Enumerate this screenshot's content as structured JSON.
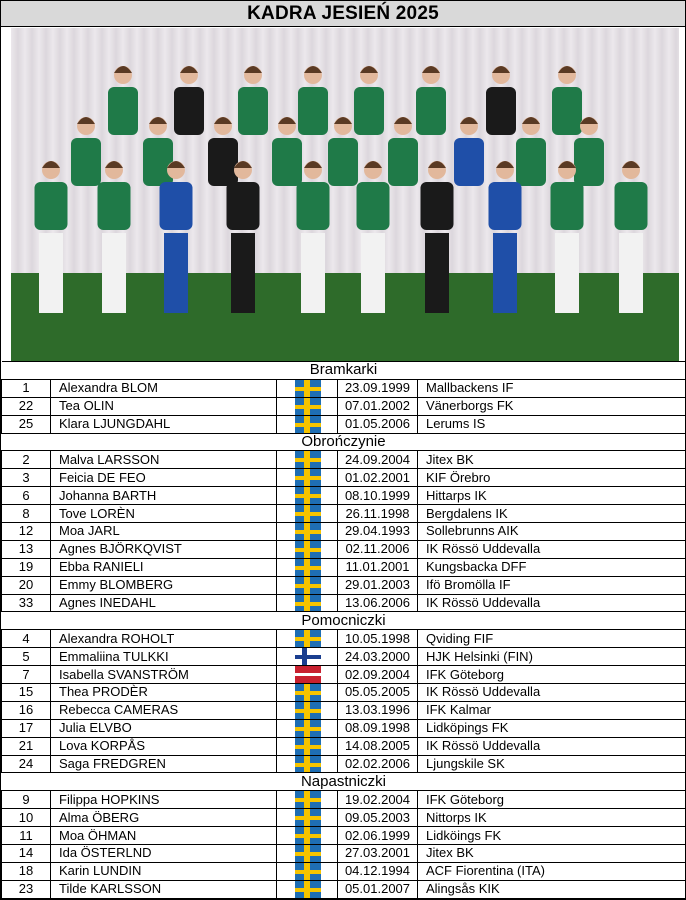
{
  "title": "KADRA JESIEŃ 2025",
  "colors": {
    "sweden": "#1e6eb4",
    "finland": "#1a3e8f",
    "latvia": "#c8202f",
    "title_bg": "#d9d9d9"
  },
  "sections": [
    {
      "label": "Bramkarki",
      "players": [
        {
          "number": "1",
          "name": "Alexandra BLOM",
          "flag": "sweden-flag-icon",
          "dob": "23.09.1999",
          "club": "Mallbackens IF"
        },
        {
          "number": "22",
          "name": "Tea OLIN",
          "flag": "sweden-flag-icon",
          "dob": "07.01.2002",
          "club": "Vänerborgs FK"
        },
        {
          "number": "25",
          "name": "Klara LJUNGDAHL",
          "flag": "sweden-flag-icon",
          "dob": "01.05.2006",
          "club": "Lerums IS"
        }
      ]
    },
    {
      "label": "Obrończynie",
      "players": [
        {
          "number": "2",
          "name": "Malva LARSSON",
          "flag": "sweden-flag-icon",
          "dob": "24.09.2004",
          "club": "Jitex BK"
        },
        {
          "number": "3",
          "name": "Feicia DE FEO",
          "flag": "sweden-flag-icon",
          "dob": "01.02.2001",
          "club": "KIF Örebro"
        },
        {
          "number": "6",
          "name": "Johanna BARTH",
          "flag": "sweden-flag-icon",
          "dob": "08.10.1999",
          "club": "Hittarps IK"
        },
        {
          "number": "8",
          "name": "Tove LORÈN",
          "flag": "sweden-flag-icon",
          "dob": "26.11.1998",
          "club": "Bergdalens IK"
        },
        {
          "number": "12",
          "name": "Moa JARL",
          "flag": "sweden-flag-icon",
          "dob": "29.04.1993",
          "club": "Sollebrunns AIK"
        },
        {
          "number": "13",
          "name": "Agnes BJÖRKQVIST",
          "flag": "sweden-flag-icon",
          "dob": "02.11.2006",
          "club": "IK Rössö Uddevalla"
        },
        {
          "number": "19",
          "name": "Ebba RANIELI",
          "flag": "sweden-flag-icon",
          "dob": "11.01.2001",
          "club": "Kungsbacka DFF"
        },
        {
          "number": "20",
          "name": "Emmy BLOMBERG",
          "flag": "sweden-flag-icon",
          "dob": "29.01.2003",
          "club": "Ifö Bromölla IF"
        },
        {
          "number": "33",
          "name": "Agnes INEDAHL",
          "flag": "sweden-flag-icon",
          "dob": "13.06.2006",
          "club": "IK Rössö Uddevalla"
        }
      ]
    },
    {
      "label": "Pomocniczki",
      "players": [
        {
          "number": "4",
          "name": "Alexandra ROHOLT",
          "flag": "sweden-flag-icon",
          "dob": "10.05.1998",
          "club": "Qviding FIF"
        },
        {
          "number": "5",
          "name": "Emmaliina TULKKI",
          "flag": "finland-flag-icon",
          "dob": "24.03.2000",
          "club": "HJK Helsinki (FIN)"
        },
        {
          "number": "7",
          "name": "Isabella SVANSTRÖM",
          "flag": "latvia-flag-icon",
          "dob": "02.09.2004",
          "club": "IFK Göteborg"
        },
        {
          "number": "15",
          "name": "Thea PRODÈR",
          "flag": "sweden-flag-icon",
          "dob": "05.05.2005",
          "club": "IK Rössö Uddevalla"
        },
        {
          "number": "16",
          "name": "Rebecca CAMERAS",
          "flag": "sweden-flag-icon",
          "dob": "13.03.1996",
          "club": "IFK Kalmar"
        },
        {
          "number": "17",
          "name": "Julia ELVBO",
          "flag": "sweden-flag-icon",
          "dob": "08.09.1998",
          "club": "Lidköpings FK"
        },
        {
          "number": "21",
          "name": "Lova KORPÅS",
          "flag": "sweden-flag-icon",
          "dob": "14.08.2005",
          "club": "IK Rössö Uddevalla"
        },
        {
          "number": "24",
          "name": "Saga FREDGREN",
          "flag": "sweden-flag-icon",
          "dob": "02.02.2006",
          "club": "Ljungskile SK"
        }
      ]
    },
    {
      "label": "Napastniczki",
      "players": [
        {
          "number": "9",
          "name": "Filippa HOPKINS",
          "flag": "sweden-flag-icon",
          "dob": "19.02.2004",
          "club": "IFK Göteborg"
        },
        {
          "number": "10",
          "name": "Alma ÖBERG",
          "flag": "sweden-flag-icon",
          "dob": "09.05.2003",
          "club": "Nittorps IK"
        },
        {
          "number": "11",
          "name": "Moa ÖHMAN",
          "flag": "sweden-flag-icon",
          "dob": "02.06.1999",
          "club": "Lidköings FK"
        },
        {
          "number": "14",
          "name": "Ida ÖSTERLND",
          "flag": "sweden-flag-icon",
          "dob": "27.03.2001",
          "club": "Jitex BK"
        },
        {
          "number": "18",
          "name": "Karin LUNDIN",
          "flag": "sweden-flag-icon",
          "dob": "04.12.1994",
          "club": "ACF Fiorentina (ITA)"
        },
        {
          "number": "23",
          "name": "Tilde KARLSSON",
          "flag": "sweden-flag-icon",
          "dob": "05.01.2007",
          "club": "Alingsås KIK"
        }
      ]
    }
  ]
}
